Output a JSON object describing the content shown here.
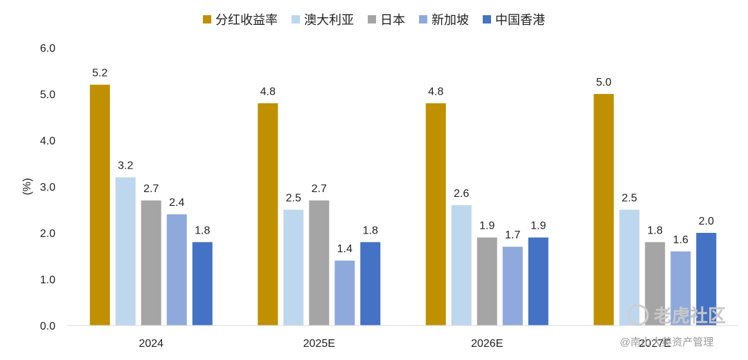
{
  "chart_data": {
    "type": "bar",
    "categories": [
      "2024",
      "2025E",
      "2026E",
      "2027E"
    ],
    "series": [
      {
        "name": "分红收益率",
        "color": "#BF9000",
        "values": [
          5.2,
          4.8,
          4.8,
          5.0
        ]
      },
      {
        "name": "澳大利亚",
        "color": "#BDD7EE",
        "values": [
          3.2,
          2.5,
          2.6,
          2.5
        ]
      },
      {
        "name": "日本",
        "color": "#A5A5A5",
        "values": [
          2.7,
          2.7,
          1.9,
          1.8
        ]
      },
      {
        "name": "新加坡",
        "color": "#8EA9DB",
        "values": [
          2.4,
          1.4,
          1.7,
          1.6
        ]
      },
      {
        "name": "中国香港",
        "color": "#4472C4",
        "values": [
          1.8,
          1.8,
          1.9,
          2.0
        ]
      }
    ],
    "ylabel": "(%)",
    "ylim": [
      0,
      6
    ],
    "yticks": [
      "0.0",
      "1.0",
      "2.0",
      "3.0",
      "4.0",
      "5.0",
      "6.0"
    ],
    "grid": false,
    "legend_position": "top"
  },
  "watermark": {
    "main": "老虎社区",
    "sub": "@南山大英资产管理"
  }
}
